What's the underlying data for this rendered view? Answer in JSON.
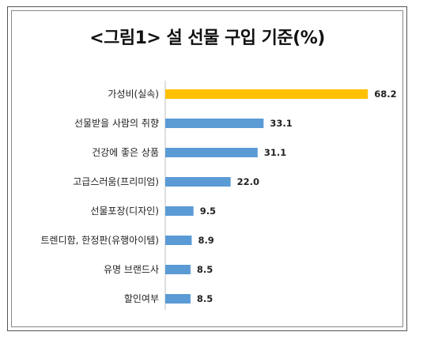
{
  "chart_data": {
    "type": "bar",
    "orientation": "horizontal",
    "title": "<그림1> 설 선물 구입 기준(%)",
    "categories": [
      "가성비(실속)",
      "선물받을 사람의 취향",
      "건강에 좋은 상품",
      "고급스러움(프리미엄)",
      "선물포장(디자인)",
      "트렌디함, 한정판(유행아이템)",
      "유명 브랜드사",
      "할인여부"
    ],
    "values": [
      68.2,
      33.1,
      31.1,
      22.0,
      9.5,
      8.9,
      8.5,
      8.5
    ],
    "value_labels": [
      "68.2",
      "33.1",
      "31.1",
      "22.0",
      "9.5",
      "8.9",
      "8.5",
      "8.5"
    ],
    "xlim": [
      0,
      70
    ],
    "grid": false,
    "colors": {
      "highlight": "#FFC000",
      "default": "#5B9BD5"
    },
    "highlight_index": 0
  }
}
